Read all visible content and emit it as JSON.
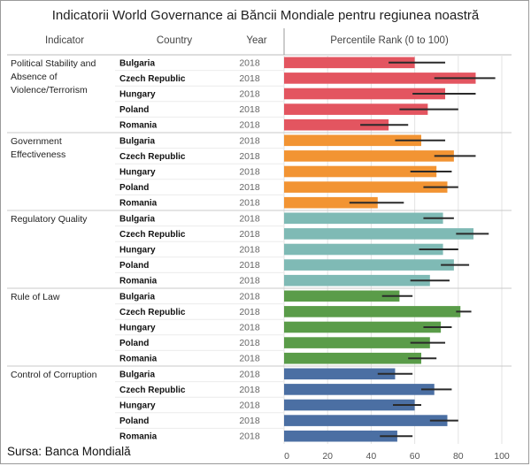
{
  "title": "Indicatorii World Governance ai Băncii Mondiale pentru regiunea noastră",
  "headers": {
    "indicator": "Indicator",
    "country": "Country",
    "year": "Year",
    "rank": "Percentile Rank (0 to 100)"
  },
  "source": "Sursa: Banca Mondială",
  "colors": {
    "Political Stability and Absence of Violence/Terrorism": "#e35560",
    "Government Effectiveness": "#f29433",
    "Regulatory Quality": "#7fbab5",
    "Rule of Law": "#5a9c49",
    "Control of Corruption": "#4b6fa3",
    "error_bar": "#2a2a2a",
    "grid": "#e3e3e3"
  },
  "chart_data": {
    "type": "bar",
    "orientation": "horizontal",
    "title": "Indicatorii World Governance ai Băncii Mondiale pentru regiunea noastră",
    "xlabel": "Percentile Rank (0 to 100)",
    "xlim": [
      0,
      100
    ],
    "xticks": [
      0,
      20,
      40,
      60,
      80,
      100
    ],
    "year": "2018",
    "countries": [
      "Bulgaria",
      "Czech Republic",
      "Hungary",
      "Poland",
      "Romania"
    ],
    "groups": [
      {
        "indicator": "Political Stability and Absence of Violence/Terrorism",
        "indicator_lines": [
          "Political Stability and",
          "Absence of",
          "Violence/Terrorism"
        ],
        "values": [
          60,
          88,
          74,
          66,
          48
        ],
        "lower": [
          48,
          69,
          59,
          53,
          35
        ],
        "upper": [
          74,
          97,
          88,
          80,
          57
        ]
      },
      {
        "indicator": "Government Effectiveness",
        "indicator_lines": [
          "Government",
          "Effectiveness"
        ],
        "values": [
          63,
          78,
          70,
          75,
          43
        ],
        "lower": [
          51,
          69,
          58,
          64,
          30
        ],
        "upper": [
          74,
          88,
          77,
          80,
          55
        ]
      },
      {
        "indicator": "Regulatory Quality",
        "indicator_lines": [
          "Regulatory Quality"
        ],
        "values": [
          73,
          87,
          73,
          78,
          67
        ],
        "lower": [
          64,
          79,
          62,
          72,
          58
        ],
        "upper": [
          78,
          94,
          80,
          85,
          76
        ]
      },
      {
        "indicator": "Rule of Law",
        "indicator_lines": [
          "Rule of Law"
        ],
        "values": [
          53,
          81,
          72,
          67,
          63
        ],
        "lower": [
          45,
          79,
          64,
          58,
          57
        ],
        "upper": [
          59,
          86,
          77,
          74,
          70
        ]
      },
      {
        "indicator": "Control of Corruption",
        "indicator_lines": [
          "Control of Corruption"
        ],
        "values": [
          51,
          69,
          60,
          75,
          52
        ],
        "lower": [
          43,
          63,
          50,
          67,
          44
        ],
        "upper": [
          59,
          77,
          63,
          80,
          59
        ]
      }
    ]
  }
}
